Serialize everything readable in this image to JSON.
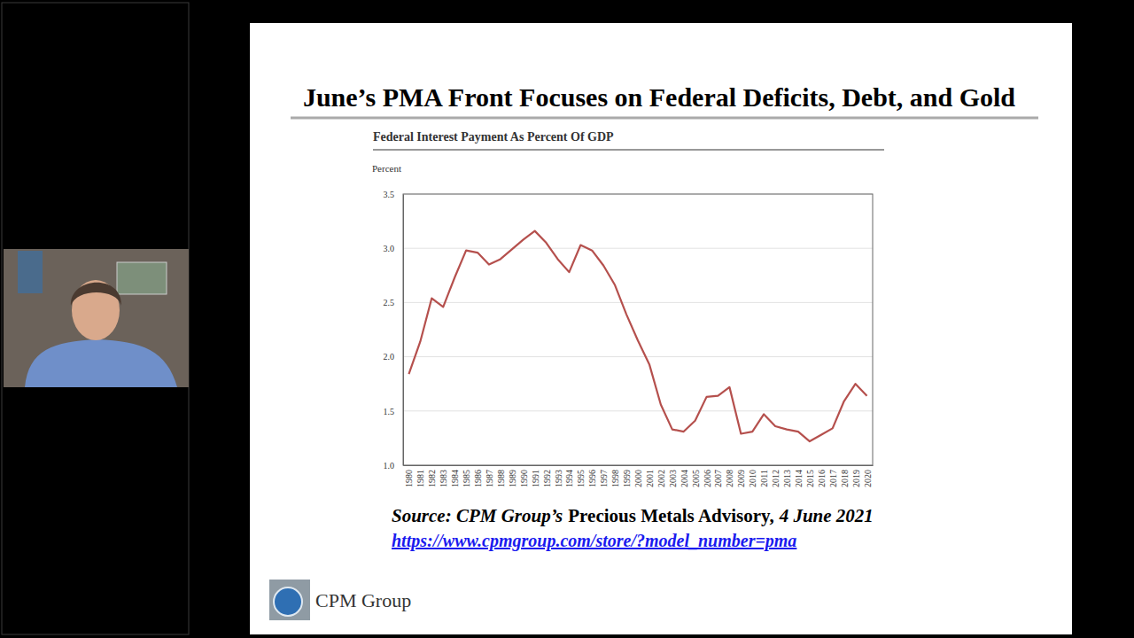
{
  "slide": {
    "title": "June’s PMA Front Focuses on Federal Deficits, Debt, and Gold",
    "source": [
      "Source: CPM Group’s",
      "Precious Metals Advisory,",
      "4 June 2021"
    ],
    "url": "https://www.cpmgroup.com/store/?model_number=pma",
    "logo": "CPM Group"
  },
  "chart_data": {
    "type": "line",
    "title": "Federal Interest Payment As Percent Of GDP",
    "y_label": "Percent",
    "x": [
      1980,
      1981,
      1982,
      1983,
      1984,
      1985,
      1986,
      1987,
      1988,
      1989,
      1990,
      1991,
      1992,
      1993,
      1994,
      1995,
      1996,
      1997,
      1998,
      1999,
      2000,
      2001,
      2002,
      2003,
      2004,
      2005,
      2006,
      2007,
      2008,
      2009,
      2010,
      2011,
      2012,
      2013,
      2014,
      2015,
      2016,
      2017,
      2018,
      2019,
      2020
    ],
    "values": [
      1.84,
      2.14,
      2.54,
      2.46,
      2.73,
      2.98,
      2.96,
      2.85,
      2.9,
      2.99,
      3.08,
      3.16,
      3.05,
      2.9,
      2.78,
      3.03,
      2.98,
      2.84,
      2.66,
      2.39,
      2.15,
      1.93,
      1.56,
      1.33,
      1.31,
      1.41,
      1.63,
      1.64,
      1.72,
      1.29,
      1.31,
      1.47,
      1.36,
      1.33,
      1.31,
      1.22,
      1.28,
      1.34,
      1.59,
      1.75,
      1.64
    ],
    "color": "#b5504d",
    "xlim": [
      1979.5,
      2020.5
    ],
    "xticks": [
      1980,
      1981,
      1982,
      1983,
      1984,
      1985,
      1986,
      1987,
      1988,
      1989,
      1990,
      1991,
      1992,
      1993,
      1994,
      1995,
      1996,
      1997,
      1998,
      1999,
      2000,
      2001,
      2002,
      2003,
      2004,
      2005,
      2006,
      2007,
      2008,
      2009,
      2010,
      2011,
      2012,
      2013,
      2014,
      2015,
      2016,
      2017,
      2018,
      2019,
      2020
    ],
    "ylim": [
      1,
      3.5
    ],
    "yticks": [
      {
        "value": 1,
        "label": "1.0"
      },
      {
        "value": 1.5,
        "label": "1.5"
      },
      {
        "value": 2,
        "label": "2.0"
      },
      {
        "value": 2.5,
        "label": "2.5"
      },
      {
        "value": 3,
        "label": "3.0"
      },
      {
        "value": 3.5,
        "label": "3.5"
      }
    ],
    "grid": "y"
  }
}
